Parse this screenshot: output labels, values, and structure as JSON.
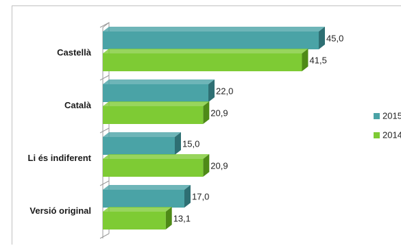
{
  "chart_data": {
    "type": "bar",
    "orientation": "horizontal",
    "three_d": true,
    "categories": [
      "Castellà",
      "Català",
      "Li és indiferent",
      "Versió original"
    ],
    "series": [
      {
        "name": "2015",
        "values": [
          45.0,
          22.0,
          15.0,
          17.0
        ],
        "color": "#4aa3a6",
        "side_color": "#2e6f73"
      },
      {
        "name": "2014",
        "values": [
          41.5,
          20.9,
          20.9,
          13.1
        ],
        "color": "#7ecb34",
        "side_color": "#4e8a17"
      }
    ],
    "value_labels": [
      [
        "45,0",
        "22,0",
        "15,0",
        "17,0"
      ],
      [
        "41,5",
        "20,9",
        "20,9",
        "13,1"
      ]
    ],
    "legend_labels": [
      "2015",
      "2014"
    ],
    "xlim": [
      0,
      50
    ],
    "grid": false,
    "legend_position": "right",
    "border_color": "#c0c0c0",
    "axis_color": "#999999"
  }
}
